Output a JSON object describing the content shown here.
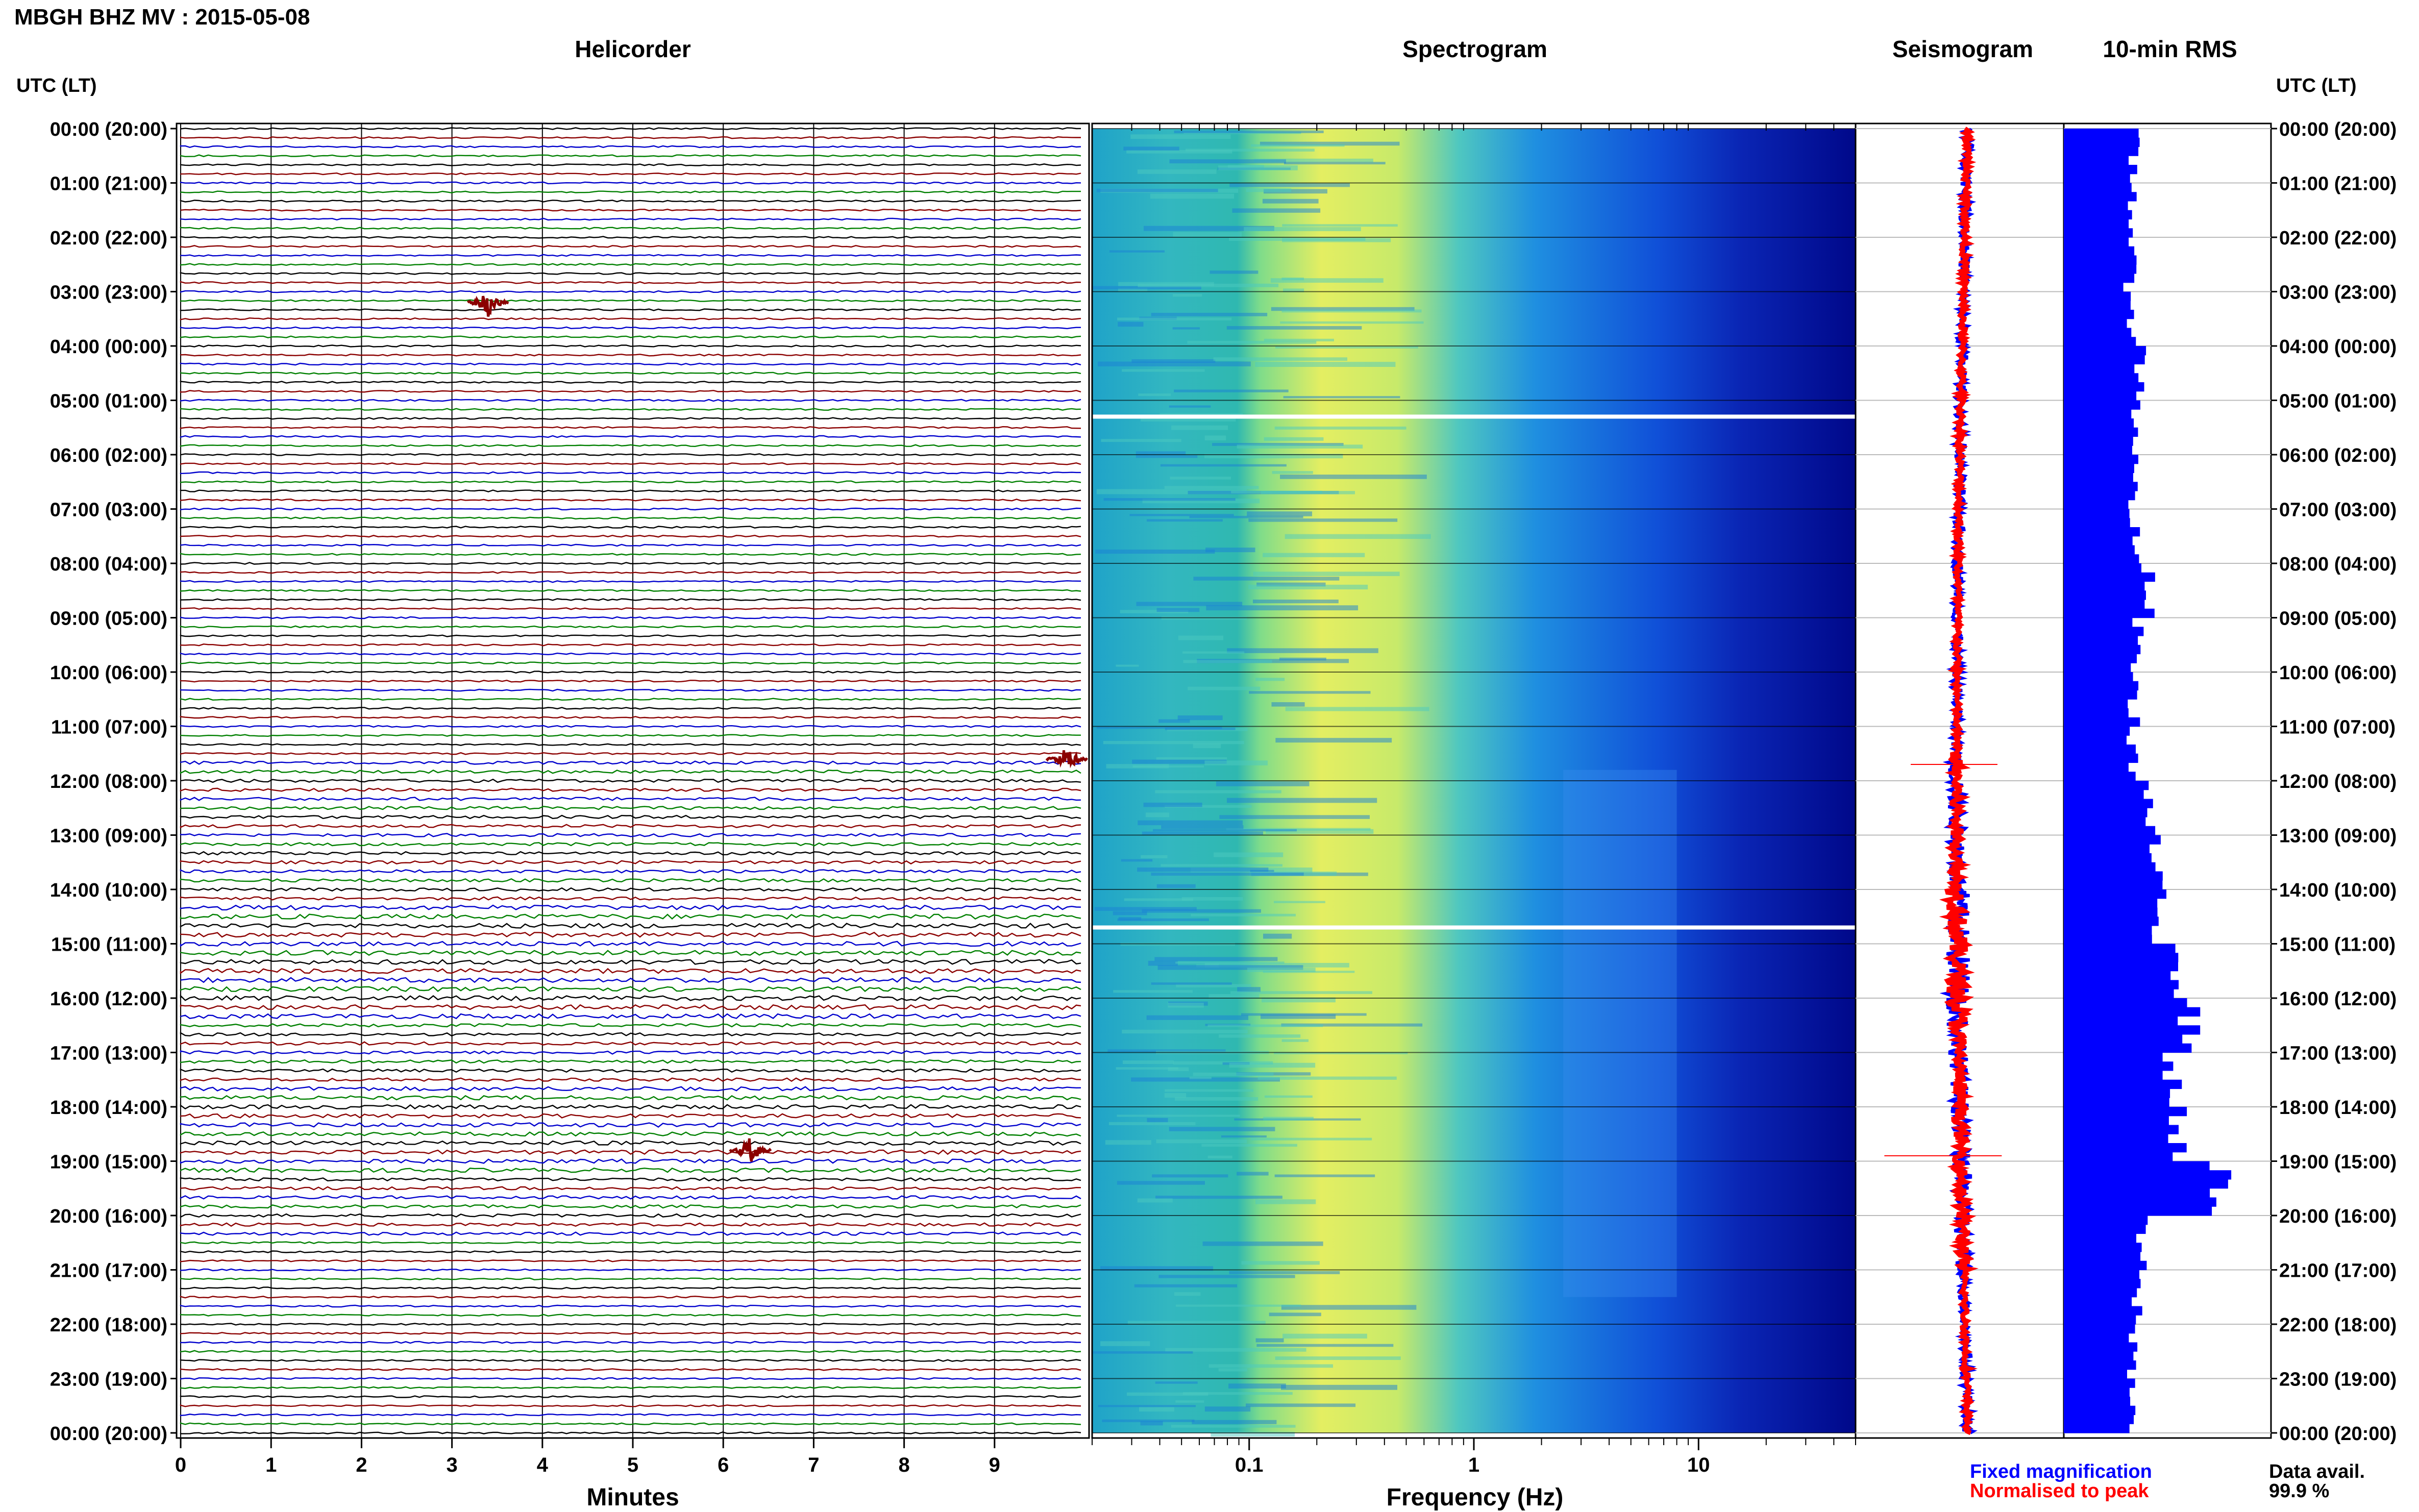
{
  "page_title": "MBGH BHZ MV : 2015-05-08",
  "panels": {
    "helicorder": "Helicorder",
    "spectrogram": "Spectrogram",
    "seismogram": "Seismogram",
    "rms": "10-min RMS"
  },
  "time_axis": {
    "header_left": "UTC (LT)",
    "header_right": "UTC (LT)",
    "ticks": [
      "00:00 (20:00)",
      "01:00 (21:00)",
      "02:00 (22:00)",
      "03:00 (23:00)",
      "04:00 (00:00)",
      "05:00 (01:00)",
      "06:00 (02:00)",
      "07:00 (03:00)",
      "08:00 (04:00)",
      "09:00 (05:00)",
      "10:00 (06:00)",
      "11:00 (07:00)",
      "12:00 (08:00)",
      "13:00 (09:00)",
      "14:00 (10:00)",
      "15:00 (11:00)",
      "16:00 (12:00)",
      "17:00 (13:00)",
      "18:00 (14:00)",
      "19:00 (15:00)",
      "20:00 (16:00)",
      "21:00 (17:00)",
      "22:00 (18:00)",
      "23:00 (19:00)",
      "00:00 (20:00)"
    ]
  },
  "legend": {
    "fixed": "Fixed magnification",
    "normalised": "Normalised to peak",
    "fixed_color": "#0000ff",
    "normalised_color": "#ff0000"
  },
  "availability": {
    "label": "Data avail.",
    "value": "99.9 %"
  },
  "colors": {
    "trace_cycle": [
      "#000000",
      "#8b0000",
      "#0000cd",
      "#008000"
    ],
    "spectrogram_low": "#00008b",
    "spectrogram_mid": "#1e90ff",
    "spectrogram_high": "#ffff66",
    "rms_bar": "#0000ff"
  },
  "chart_data": [
    {
      "type": "line",
      "panel": "Helicorder",
      "xlabel": "Minutes",
      "xticks": [
        "0",
        "1",
        "2",
        "3",
        "4",
        "5",
        "6",
        "7",
        "8",
        "9"
      ],
      "xlim": [
        0,
        10
      ],
      "rows_per_hour": 6,
      "hours": 24,
      "events": [
        {
          "hour": 3.2,
          "minute": 3.4,
          "color": "#8b0000"
        },
        {
          "hour": 11.6,
          "minute": 9.8,
          "color": "#8b0000"
        },
        {
          "hour": 18.8,
          "minute": 6.3,
          "color": "#8b0000"
        }
      ]
    },
    {
      "type": "heatmap",
      "panel": "Spectrogram",
      "xlabel": "Frequency (Hz)",
      "xscale": "log",
      "xticks": [
        "0.1",
        "1",
        "10"
      ],
      "xlim": [
        0.02,
        50
      ],
      "gaps_hour": [
        5.3,
        14.7
      ]
    },
    {
      "type": "line",
      "panel": "Seismogram",
      "series": [
        {
          "name": "Fixed magnification",
          "color": "#0000ff"
        },
        {
          "name": "Normalised to peak",
          "color": "#ff0000"
        }
      ]
    },
    {
      "type": "bar",
      "panel": "10-min RMS",
      "orientation": "horizontal",
      "hours": [
        0,
        1,
        2,
        3,
        4,
        5,
        6,
        7,
        8,
        9,
        10,
        11,
        12,
        13,
        14,
        15,
        16,
        17,
        18,
        19,
        20,
        21,
        22,
        23
      ],
      "values": [
        1.0,
        1.0,
        0.95,
        1.0,
        1.1,
        1.05,
        1.0,
        1.0,
        1.2,
        1.05,
        1.0,
        1.0,
        1.2,
        1.3,
        1.35,
        1.7,
        1.8,
        1.55,
        1.65,
        2.2,
        1.1,
        1.05,
        1.0,
        1.0
      ]
    }
  ]
}
